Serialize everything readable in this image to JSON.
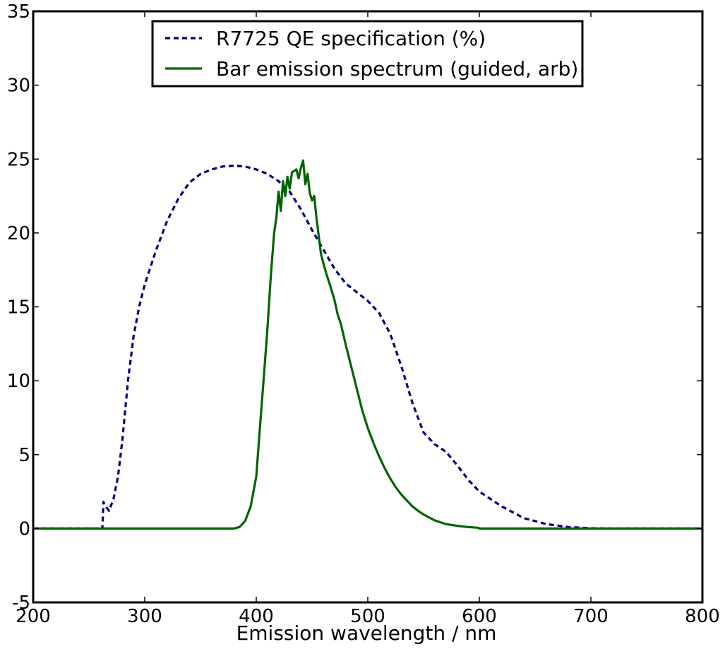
{
  "chart_data": {
    "type": "line",
    "title": "",
    "xlabel": "Emission wavelength / nm",
    "ylabel": "",
    "xlim": [
      200,
      800
    ],
    "ylim": [
      -5,
      35
    ],
    "xticks": [
      "200",
      "300",
      "400",
      "500",
      "600",
      "700",
      "800"
    ],
    "yticks": [
      "-5",
      "0",
      "5",
      "10",
      "15",
      "20",
      "25",
      "30",
      "35"
    ],
    "grid": false,
    "legend_position": "top-center",
    "series": [
      {
        "name": "R7725 QE specification (%)",
        "color": "#000080",
        "style": "dashed",
        "x": [
          200,
          262,
          263,
          265,
          268,
          272,
          276,
          280,
          285,
          290,
          295,
          300,
          310,
          320,
          330,
          340,
          350,
          360,
          370,
          380,
          390,
          400,
          410,
          420,
          430,
          440,
          450,
          460,
          470,
          480,
          490,
          500,
          510,
          520,
          530,
          540,
          550,
          560,
          570,
          580,
          590,
          600,
          620,
          640,
          660,
          680,
          700,
          720,
          800
        ],
        "y": [
          0,
          0,
          1.8,
          1.5,
          1.2,
          2.0,
          3.5,
          6.0,
          10.0,
          13.0,
          15.0,
          16.5,
          18.8,
          20.8,
          22.3,
          23.4,
          24.0,
          24.3,
          24.5,
          24.55,
          24.5,
          24.3,
          24.0,
          23.5,
          22.8,
          21.6,
          20.2,
          18.9,
          17.6,
          16.6,
          16.0,
          15.4,
          14.6,
          13.2,
          11.0,
          8.5,
          6.5,
          5.7,
          5.2,
          4.3,
          3.3,
          2.5,
          1.5,
          0.7,
          0.3,
          0.1,
          0.02,
          0,
          0
        ]
      },
      {
        "name": "Bar emission spectrum (guided, arb)",
        "color": "#006400",
        "style": "solid",
        "x": [
          200,
          380,
          385,
          390,
          395,
          400,
          403,
          406,
          410,
          413,
          416,
          418,
          420,
          422,
          424,
          426,
          428,
          430,
          432,
          434,
          436,
          438,
          440,
          442,
          444,
          446,
          448,
          450,
          452,
          454,
          456,
          458,
          460,
          463,
          466,
          470,
          473,
          476,
          480,
          485,
          490,
          495,
          500,
          505,
          510,
          515,
          520,
          525,
          530,
          535,
          540,
          545,
          550,
          560,
          570,
          580,
          590,
          599,
          600,
          800
        ],
        "y": [
          0,
          0,
          0.1,
          0.5,
          1.5,
          3.5,
          6.5,
          9.5,
          13.5,
          17.0,
          20.0,
          21.0,
          22.8,
          21.5,
          23.5,
          22.5,
          23.8,
          23.0,
          24.1,
          24.2,
          24.3,
          23.7,
          24.4,
          24.9,
          23.3,
          24.0,
          22.7,
          22.2,
          22.5,
          21.0,
          19.8,
          18.6,
          18.0,
          17.2,
          16.5,
          15.5,
          14.5,
          13.8,
          12.5,
          11.0,
          9.5,
          8.0,
          6.8,
          5.8,
          4.9,
          4.1,
          3.4,
          2.8,
          2.3,
          1.9,
          1.5,
          1.2,
          0.95,
          0.55,
          0.3,
          0.18,
          0.1,
          0.05,
          0,
          0
        ]
      }
    ]
  }
}
